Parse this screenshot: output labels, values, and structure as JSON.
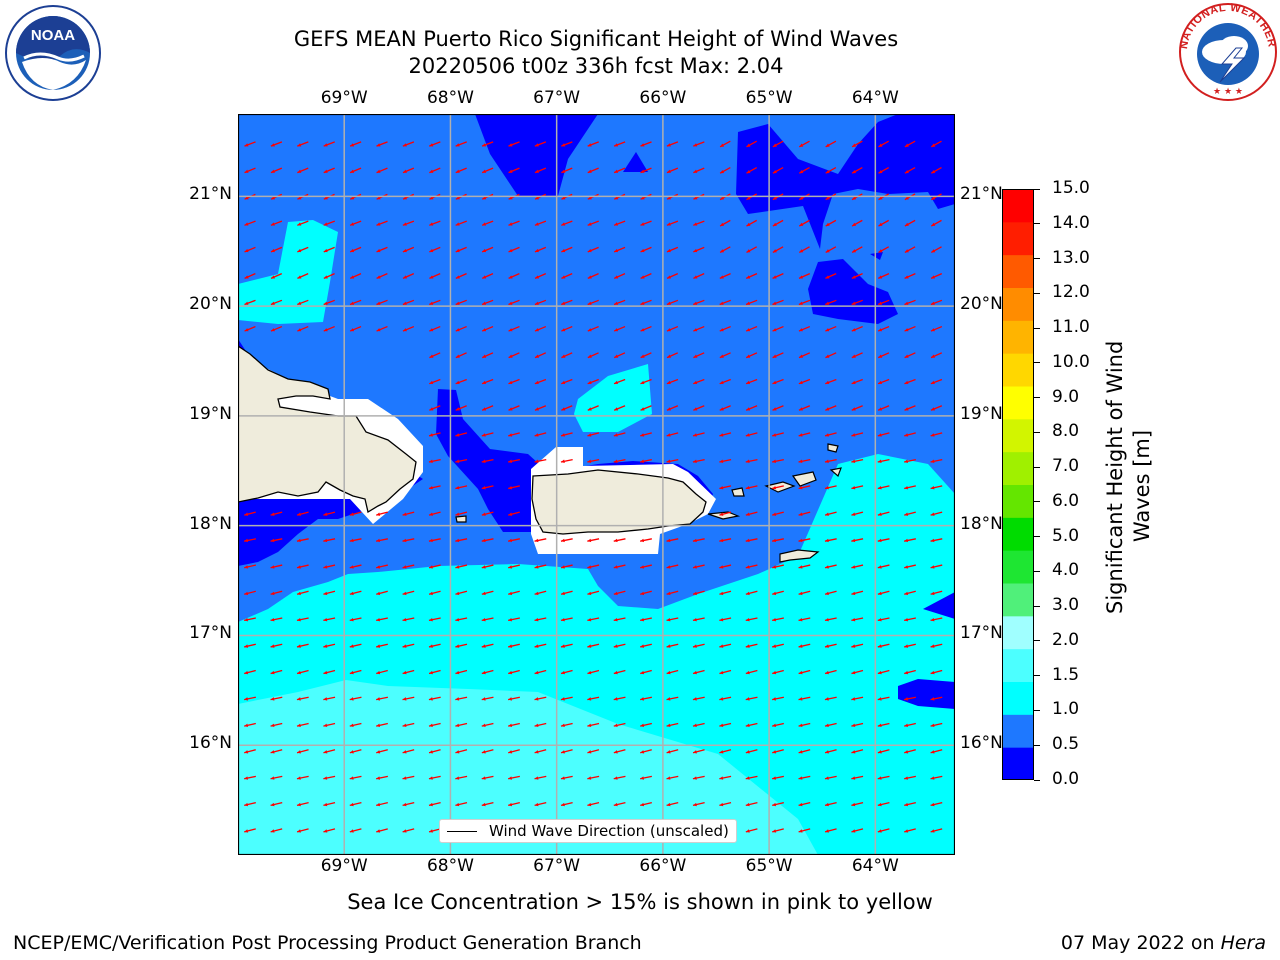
{
  "header": {
    "title_line1": "GEFS MEAN Puerto Rico Significant Height of Wind Waves",
    "title_line2": "20220506 t00z 336h fcst   Max: 2.04"
  },
  "logos": {
    "left": {
      "name": "noaa-logo",
      "text": "NOAA"
    },
    "right": {
      "name": "nws-logo",
      "text": "NATIONAL WEATHER SERVICE"
    }
  },
  "map": {
    "lon_labels": [
      "69°W",
      "68°W",
      "67°W",
      "66°W",
      "65°W",
      "64°W"
    ],
    "lon_values": [
      -69,
      -68,
      -67,
      -66,
      -65,
      -64
    ],
    "lat_labels": [
      "21°N",
      "20°N",
      "19°N",
      "18°N",
      "17°N",
      "16°N"
    ],
    "lat_values": [
      21,
      20,
      19,
      18,
      17,
      16
    ],
    "extent": {
      "lon_min": -70.0,
      "lon_max": -63.25,
      "lat_min": 15.0,
      "lat_max": 21.75
    },
    "legend_label": "Wind Wave Direction (unscaled)",
    "arrow_color": "#ff0000",
    "land_color": "#efecdc",
    "gridlines": true
  },
  "colorbar": {
    "label": "Significant Height of Wind\nWaves [m]",
    "ticks": [
      "0.0",
      "0.5",
      "1.0",
      "1.5",
      "2.0",
      "3.0",
      "4.0",
      "5.0",
      "6.0",
      "7.0",
      "8.0",
      "9.0",
      "10.0",
      "11.0",
      "12.0",
      "13.0",
      "14.0",
      "15.0"
    ],
    "colors": [
      "#0000ff",
      "#1e78ff",
      "#00ffff",
      "#4cffff",
      "#a0ffff",
      "#50f07a",
      "#1ee632",
      "#00dc00",
      "#64e600",
      "#a0f000",
      "#d2f500",
      "#ffff00",
      "#ffd700",
      "#ffb400",
      "#ff8c00",
      "#ff5a00",
      "#ff1e00",
      "#ff0000"
    ]
  },
  "footer": {
    "note": "Sea Ice Concentration > 15% is shown in pink to yellow",
    "left": "NCEP/EMC/Verification Post Processing Product Generation Branch",
    "right_date": "07 May 2022 on ",
    "right_host": "Hera"
  }
}
